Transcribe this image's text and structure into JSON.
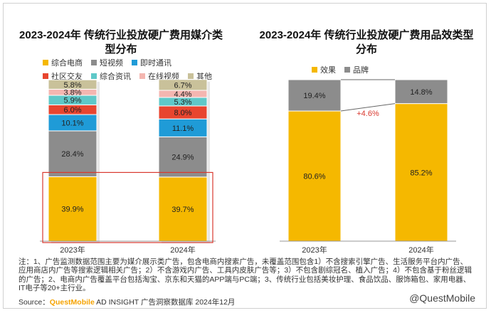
{
  "chart_data": [
    {
      "type": "stacked-bar",
      "title": "2023-2024年 传统行业投放硬广费用媒介类型分布",
      "categories": [
        "2023年",
        "2024年"
      ],
      "series": [
        {
          "name": "综合电商",
          "color": "#f5b800",
          "values": [
            39.9,
            39.7
          ]
        },
        {
          "name": "短视频",
          "color": "#8c8c8c",
          "values": [
            28.4,
            24.9
          ]
        },
        {
          "name": "即时通讯",
          "color": "#1f9bd7",
          "values": [
            10.1,
            11.1
          ]
        },
        {
          "name": "社区交友",
          "color": "#e8452f",
          "values": [
            6.0,
            8.0
          ]
        },
        {
          "name": "综合资讯",
          "color": "#5ec8c8",
          "values": [
            5.9,
            5.3
          ]
        },
        {
          "name": "在线视频",
          "color": "#f4b6b0",
          "values": [
            3.8,
            4.4
          ]
        },
        {
          "name": "其他",
          "color": "#c9c19a",
          "values": [
            5.8,
            6.7
          ]
        }
      ],
      "value_labels": [
        [
          "39.9%",
          "28.4%",
          "10.1%",
          "6.0%",
          "5.9%",
          "3.8%",
          "5.8%"
        ],
        [
          "39.7%",
          "24.9%",
          "11.1%",
          "8.0%",
          "5.3%",
          "4.4%",
          "6.7%"
        ]
      ],
      "ylim": [
        0,
        100
      ],
      "highlight_series": "综合电商",
      "legend_position": "top"
    },
    {
      "type": "stacked-bar",
      "title": "2023-2024年 传统行业投放硬广费用品效类型分布",
      "categories": [
        "2023年",
        "2024年"
      ],
      "series": [
        {
          "name": "效果",
          "color": "#f5b800",
          "values": [
            80.6,
            85.2
          ]
        },
        {
          "name": "品牌",
          "color": "#8c8c8c",
          "values": [
            19.4,
            14.8
          ]
        }
      ],
      "value_labels": [
        [
          "80.6%",
          "19.4%"
        ],
        [
          "85.2%",
          "14.8%"
        ]
      ],
      "annotation": "+4.6%",
      "ylim": [
        0,
        100
      ],
      "legend_position": "top"
    }
  ],
  "note": "注：1、广告监测数据范围主要为媒介展示类广告，包含电商内搜索广告，未覆盖范围包含1）不含搜索引擎广告、生活服务平台内广告、应用商店内广告等搜索逻辑相关广告；2）不含游戏内广告、工具内皮肤广告等；3）不包含剧综冠名、植入广告；4）不包含基于粉丝逻辑的广告；2、电商内广告覆盖平台包括淘宝、京东和天猫的APP端与PC端；3、传统行业包括美妆护理、食品饮品、服饰箱包、家用电器、IT电子等20+主行业。",
  "source": {
    "prefix": "Source：",
    "brand": "QuestMobile",
    "suffix": " AD INSIGHT 广告洞察数据库 2024年12月"
  },
  "watermark": "@QuestMobile"
}
